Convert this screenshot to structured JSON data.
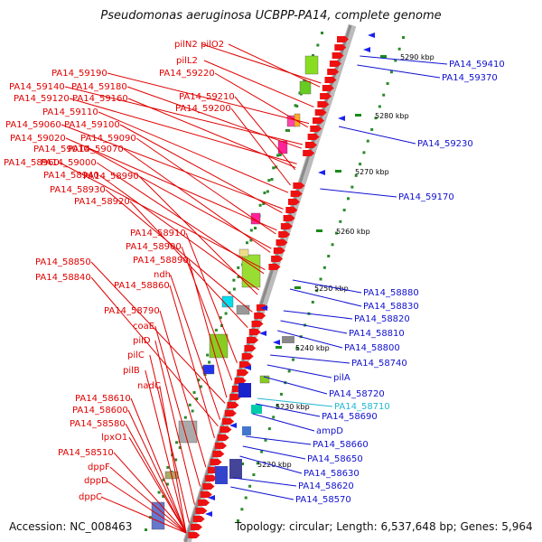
{
  "title": "Pseudomonas aeruginosa UCBPP-PA14, complete genome",
  "accession": "Accession: NC_008463",
  "topology": "Topology: circular; Length: 6,537,648 bp; Genes: 5,964",
  "colors": {
    "left_label": "#e00000",
    "right_label": "#1010d0",
    "highlight_label": "#20b8d0",
    "ruler": "#8a8a8a",
    "tick": "#1a8a1a"
  },
  "ticks": [
    "5220 kbp",
    "5230 kbp",
    "5240 kbp",
    "5250 kbp",
    "5260 kbp",
    "5270 kbp",
    "5280 kbp",
    "5290 kbp"
  ],
  "left_labels": [
    "pilN2",
    "pilO2",
    "pilL2",
    "PA14_59190",
    "PA14_59220",
    "PA14_59140",
    "PA14_59180",
    "PA14_59120",
    "PA14_59160",
    "PA14_59210",
    "PA14_59200",
    "PA14_59110",
    "PA14_59060",
    "PA14_59100",
    "PA14_59020",
    "PA14_59090",
    "PA14_59010",
    "PA14_59070",
    "PA14_58960",
    "PA14_59000",
    "PA14_58940",
    "PA14_58990",
    "PA14_58930",
    "PA14_58920",
    "PA14_58910",
    "PA14_58900",
    "PA14_58890",
    "PA14_58850",
    "ndh",
    "PA14_58840",
    "PA14_58860",
    "PA14_58790",
    "coaE",
    "pilD",
    "pilC",
    "pilB",
    "nadC",
    "PA14_58610",
    "PA14_58600",
    "PA14_58580",
    "lpxO1",
    "PA14_58510",
    "dppF",
    "dppD",
    "dppC"
  ],
  "right_labels": [
    "PA14_59410",
    "PA14_59370",
    "PA14_59230",
    "PA14_59170",
    "PA14_58880",
    "PA14_58830",
    "PA14_58820",
    "PA14_58810",
    "PA14_58800",
    "PA14_58740",
    "pilA",
    "PA14_58720",
    "PA14_58710",
    "PA14_58690",
    "ampD",
    "PA14_58660",
    "PA14_58650",
    "PA14_58630",
    "PA14_58620",
    "PA14_58570"
  ]
}
